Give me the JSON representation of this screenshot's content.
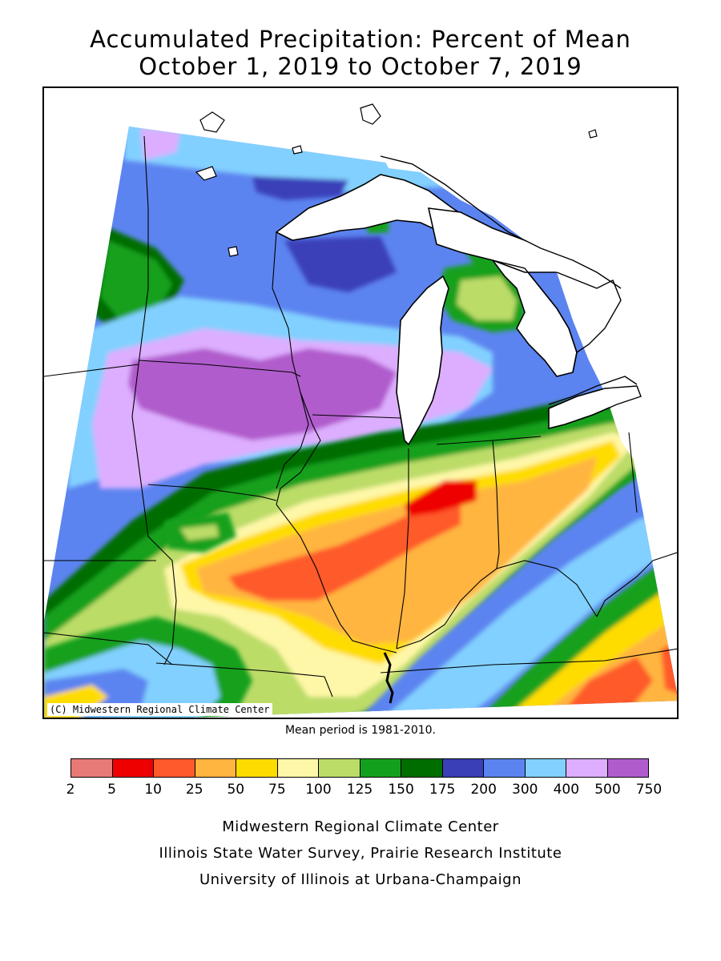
{
  "title_line1": "Accumulated Precipitation: Percent of Mean",
  "title_line2": "October 1, 2019 to October 7, 2019",
  "copyright": "(C) Midwestern Regional Climate Center",
  "mean_note": "Mean period is 1981-2010.",
  "legend": {
    "colors": [
      "#e77a76",
      "#ee0000",
      "#ff5a2b",
      "#ffb540",
      "#ffdc00",
      "#fff7a8",
      "#bcdc68",
      "#14a01e",
      "#006d00",
      "#3a3fb8",
      "#5c84f0",
      "#82d0ff",
      "#ddaeff",
      "#b05ccc"
    ],
    "labels": [
      "2",
      "5",
      "10",
      "25",
      "50",
      "75",
      "100",
      "125",
      "150",
      "175",
      "200",
      "300",
      "400",
      "500",
      "750"
    ]
  },
  "credits": {
    "line1": "Midwestern Regional Climate Center",
    "line2": "Illinois State Water Survey, Prairie Research Institute",
    "line3": "University of Illinois at Urbana-Champaign"
  }
}
